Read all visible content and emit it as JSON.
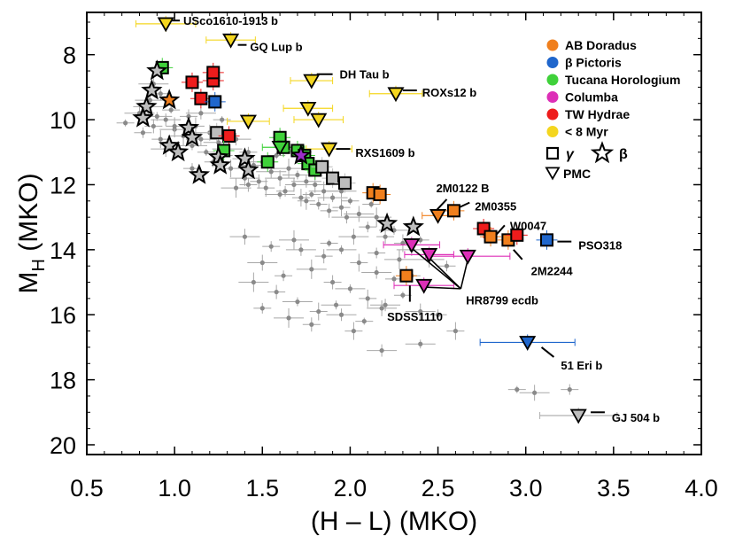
{
  "chart_data": {
    "type": "scatter",
    "xlabel": "(H – L) (MKO)",
    "ylabel_main": "M",
    "ylabel_sub": "H",
    "ylabel_tail": " (MKO)",
    "xlim": [
      0.5,
      4.0
    ],
    "ylim": [
      20.3,
      6.7
    ],
    "y_inverted": true,
    "x_ticks": [
      "0.5",
      "1.0",
      "1.5",
      "2.0",
      "2.5",
      "3.0",
      "3.5",
      "4.0"
    ],
    "y_ticks": [
      "8",
      "10",
      "12",
      "14",
      "16",
      "18",
      "20"
    ],
    "colors": {
      "ab_doradus": "#f07f1d",
      "beta_pictoris": "#1f66cc",
      "tucana_horologium": "#3fd13a",
      "columba": "#dd2fb7",
      "tw_hydrae": "#ee1c1c",
      "lt8myr": "#f4d61f",
      "field": "#8a8a8a",
      "beta_gray": "#bdbdbd"
    },
    "legend": {
      "entries": [
        {
          "label": "AB Doradus",
          "color": "#f07f1d"
        },
        {
          "label": "β Pictoris",
          "color": "#1f66cc"
        },
        {
          "label": "Tucana Horologium",
          "color": "#3fd13a"
        },
        {
          "label": "Columba",
          "color": "#dd2fb7"
        },
        {
          "label": "TW Hydrae",
          "color": "#ee1c1c"
        },
        {
          "label": "< 8 Myr",
          "color": "#f4d61f"
        }
      ],
      "gamma_label": "γ",
      "beta_label": "β",
      "pmc_label": "PMC",
      "location": "top-right"
    },
    "series": [
      {
        "name": "field",
        "marker": "dot",
        "points": [
          [
            0.72,
            10.1
          ],
          [
            0.8,
            9.8
          ],
          [
            0.82,
            10.4
          ],
          [
            0.85,
            9.6
          ],
          [
            0.88,
            10.2
          ],
          [
            0.9,
            9.9
          ],
          [
            0.92,
            10.6
          ],
          [
            0.95,
            10.0
          ],
          [
            0.98,
            9.7
          ],
          [
            1.0,
            10.3
          ],
          [
            1.02,
            10.9
          ],
          [
            1.05,
            10.5
          ],
          [
            1.08,
            9.9
          ],
          [
            1.1,
            10.8
          ],
          [
            1.12,
            10.2
          ],
          [
            1.15,
            10.6
          ],
          [
            1.18,
            11.0
          ],
          [
            1.2,
            10.4
          ],
          [
            1.22,
            11.3
          ],
          [
            1.25,
            10.7
          ],
          [
            1.28,
            11.1
          ],
          [
            1.3,
            10.9
          ],
          [
            1.32,
            11.5
          ],
          [
            1.35,
            10.6
          ],
          [
            1.38,
            11.2
          ],
          [
            1.4,
            11.8
          ],
          [
            1.42,
            11.0
          ],
          [
            1.45,
            11.4
          ],
          [
            1.48,
            11.9
          ],
          [
            1.5,
            11.3
          ],
          [
            1.52,
            12.1
          ],
          [
            1.55,
            11.6
          ],
          [
            1.58,
            11.1
          ],
          [
            1.6,
            11.8
          ],
          [
            1.63,
            12.2
          ],
          [
            1.65,
            11.5
          ],
          [
            1.68,
            12.0
          ],
          [
            1.7,
            11.7
          ],
          [
            1.72,
            12.4
          ],
          [
            1.75,
            11.9
          ],
          [
            1.78,
            12.3
          ],
          [
            1.8,
            12.0
          ],
          [
            1.82,
            12.6
          ],
          [
            1.85,
            12.2
          ],
          [
            1.88,
            12.8
          ],
          [
            1.9,
            12.4
          ],
          [
            1.95,
            12.7
          ],
          [
            1.98,
            13.0
          ],
          [
            2.0,
            12.5
          ],
          [
            2.05,
            12.9
          ],
          [
            2.1,
            13.3
          ],
          [
            2.15,
            13.0
          ],
          [
            2.2,
            13.6
          ],
          [
            2.25,
            13.4
          ],
          [
            2.3,
            13.8
          ],
          [
            2.35,
            14.0
          ],
          [
            2.4,
            13.7
          ],
          [
            2.45,
            14.3
          ],
          [
            2.55,
            14.5
          ],
          [
            0.88,
            8.9
          ],
          [
            0.92,
            9.2
          ],
          [
            0.86,
            9.4
          ],
          [
            1.0,
            10.2
          ],
          [
            1.15,
            9.8
          ],
          [
            1.27,
            10.0
          ],
          [
            0.95,
            10.9
          ],
          [
            1.1,
            11.5
          ],
          [
            1.35,
            12.1
          ],
          [
            1.42,
            12.0
          ],
          [
            1.6,
            12.3
          ],
          [
            1.75,
            12.5
          ],
          [
            1.95,
            12.2
          ],
          [
            2.12,
            12.6
          ],
          [
            1.4,
            13.6
          ],
          [
            1.55,
            13.9
          ],
          [
            1.68,
            13.7
          ],
          [
            1.85,
            14.2
          ],
          [
            1.95,
            14.0
          ],
          [
            2.05,
            14.4
          ],
          [
            2.15,
            14.7
          ],
          [
            2.25,
            14.9
          ],
          [
            1.5,
            14.4
          ],
          [
            1.62,
            14.8
          ],
          [
            1.78,
            14.6
          ],
          [
            1.9,
            15.0
          ],
          [
            2.0,
            15.2
          ],
          [
            2.1,
            15.5
          ],
          [
            2.2,
            15.7
          ],
          [
            2.3,
            15.4
          ],
          [
            2.4,
            15.9
          ],
          [
            2.5,
            16.0
          ],
          [
            1.45,
            15.0
          ],
          [
            1.58,
            15.3
          ],
          [
            1.7,
            15.6
          ],
          [
            1.82,
            15.9
          ],
          [
            1.95,
            16.0
          ],
          [
            2.08,
            16.2
          ],
          [
            2.18,
            15.8
          ],
          [
            1.5,
            15.8
          ],
          [
            1.65,
            16.1
          ],
          [
            1.78,
            16.3
          ],
          [
            1.92,
            15.7
          ],
          [
            2.02,
            16.5
          ],
          [
            1.72,
            14.0
          ],
          [
            1.88,
            13.8
          ],
          [
            2.02,
            13.6
          ],
          [
            2.15,
            14.1
          ],
          [
            2.28,
            14.3
          ],
          [
            2.35,
            14.8
          ],
          [
            2.4,
            16.9
          ],
          [
            2.6,
            16.5
          ],
          [
            2.18,
            17.1
          ],
          [
            2.95,
            18.3
          ],
          [
            3.05,
            18.4
          ],
          [
            3.25,
            18.3
          ]
        ]
      },
      {
        "name": "pmc",
        "marker": "triangle-down",
        "points": [
          {
            "x": 0.95,
            "y": 7.05,
            "color": "#f4d61f",
            "xerr": 0.17
          },
          {
            "x": 1.32,
            "y": 7.55,
            "color": "#f4d61f",
            "xerr": 0.14
          },
          {
            "x": 1.78,
            "y": 8.8,
            "color": "#f4d61f",
            "xerr": 0.12
          },
          {
            "x": 2.26,
            "y": 9.2,
            "color": "#f4d61f",
            "xerr": 0.15
          },
          {
            "x": 1.76,
            "y": 9.65,
            "color": "#f4d61f",
            "xerr": 0.14
          },
          {
            "x": 1.82,
            "y": 10.0,
            "color": "#f4d61f",
            "xerr": 0.14
          },
          {
            "x": 1.42,
            "y": 10.05,
            "color": "#f4d61f",
            "xerr": 0.12
          },
          {
            "x": 1.88,
            "y": 10.9,
            "color": "#f4d61f",
            "xerr": 0.13
          },
          {
            "x": 2.35,
            "y": 13.85,
            "color": "#dd2fb7",
            "xerr": 0.16
          },
          {
            "x": 2.45,
            "y": 14.15,
            "color": "#dd2fb7",
            "xerr": 0.14
          },
          {
            "x": 2.67,
            "y": 14.2,
            "color": "#dd2fb7",
            "xerr": 0.24
          },
          {
            "x": 2.42,
            "y": 15.1,
            "color": "#dd2fb7",
            "xerr": 0.17
          },
          {
            "x": 3.01,
            "y": 16.85,
            "color": "#1f66cc",
            "xerr": 0.27
          },
          {
            "x": 3.3,
            "y": 19.1,
            "color": "#bdbdbd",
            "xerr": 0.22
          },
          {
            "x": 2.5,
            "y": 12.95,
            "color": "#f07f1d",
            "xerr": 0.09
          },
          {
            "x": 1.6,
            "y": 10.85,
            "color": "#3fd13a",
            "xerr": 0.1
          }
        ]
      },
      {
        "name": "gamma",
        "marker": "square",
        "points": [
          {
            "x": 0.93,
            "y": 8.4,
            "color": "#3fd13a"
          },
          {
            "x": 1.1,
            "y": 8.85,
            "color": "#ee1c1c"
          },
          {
            "x": 1.22,
            "y": 8.8,
            "color": "#ee1c1c"
          },
          {
            "x": 1.22,
            "y": 8.55,
            "color": "#ee1c1c"
          },
          {
            "x": 1.15,
            "y": 9.35,
            "color": "#ee1c1c"
          },
          {
            "x": 1.23,
            "y": 9.45,
            "color": "#1f66cc"
          },
          {
            "x": 1.24,
            "y": 10.4,
            "color": "#bdbdbd"
          },
          {
            "x": 1.31,
            "y": 10.5,
            "color": "#ee1c1c"
          },
          {
            "x": 1.28,
            "y": 10.95,
            "color": "#3fd13a"
          },
          {
            "x": 1.6,
            "y": 10.55,
            "color": "#3fd13a"
          },
          {
            "x": 1.62,
            "y": 10.85,
            "color": "#3fd13a"
          },
          {
            "x": 1.7,
            "y": 10.95,
            "color": "#3fd13a"
          },
          {
            "x": 1.74,
            "y": 11.1,
            "color": "#3fd13a"
          },
          {
            "x": 1.76,
            "y": 11.35,
            "color": "#3fd13a"
          },
          {
            "x": 1.53,
            "y": 11.3,
            "color": "#3fd13a"
          },
          {
            "x": 1.8,
            "y": 11.55,
            "color": "#3fd13a"
          },
          {
            "x": 1.84,
            "y": 11.45,
            "color": "#bdbdbd"
          },
          {
            "x": 1.9,
            "y": 11.8,
            "color": "#bdbdbd"
          },
          {
            "x": 1.97,
            "y": 11.95,
            "color": "#bdbdbd"
          },
          {
            "x": 2.13,
            "y": 12.25,
            "color": "#f07f1d"
          },
          {
            "x": 2.17,
            "y": 12.3,
            "color": "#f07f1d"
          },
          {
            "x": 2.59,
            "y": 12.8,
            "color": "#f07f1d"
          },
          {
            "x": 2.76,
            "y": 13.35,
            "color": "#ee1c1c"
          },
          {
            "x": 2.8,
            "y": 13.6,
            "color": "#f07f1d"
          },
          {
            "x": 2.9,
            "y": 13.7,
            "color": "#f07f1d"
          },
          {
            "x": 2.95,
            "y": 13.55,
            "color": "#ee1c1c"
          },
          {
            "x": 3.12,
            "y": 13.7,
            "color": "#1f66cc"
          },
          {
            "x": 2.32,
            "y": 14.8,
            "color": "#f07f1d"
          }
        ]
      },
      {
        "name": "beta",
        "marker": "star",
        "points": [
          {
            "x": 0.9,
            "y": 8.5,
            "color": "#bdbdbd"
          },
          {
            "x": 0.87,
            "y": 9.1,
            "color": "#bdbdbd"
          },
          {
            "x": 0.97,
            "y": 9.4,
            "color": "#f07f1d"
          },
          {
            "x": 0.84,
            "y": 9.6,
            "color": "#bdbdbd"
          },
          {
            "x": 0.82,
            "y": 9.95,
            "color": "#bdbdbd"
          },
          {
            "x": 1.08,
            "y": 10.25,
            "color": "#bdbdbd"
          },
          {
            "x": 1.1,
            "y": 10.55,
            "color": "#bdbdbd"
          },
          {
            "x": 0.97,
            "y": 10.8,
            "color": "#bdbdbd"
          },
          {
            "x": 1.02,
            "y": 11.0,
            "color": "#bdbdbd"
          },
          {
            "x": 1.25,
            "y": 11.15,
            "color": "#bdbdbd"
          },
          {
            "x": 1.4,
            "y": 11.2,
            "color": "#bdbdbd"
          },
          {
            "x": 1.26,
            "y": 11.4,
            "color": "#bdbdbd"
          },
          {
            "x": 1.42,
            "y": 11.55,
            "color": "#bdbdbd"
          },
          {
            "x": 1.14,
            "y": 11.7,
            "color": "#bdbdbd"
          },
          {
            "x": 1.72,
            "y": 11.1,
            "color": "#9b2fc8"
          },
          {
            "x": 2.21,
            "y": 13.2,
            "color": "#bdbdbd"
          },
          {
            "x": 2.36,
            "y": 13.3,
            "color": "#bdbdbd"
          }
        ]
      }
    ],
    "annotations": [
      {
        "text": "USco1610-1913 b",
        "x": 1.05,
        "y": 6.95,
        "lx1": 0.98,
        "ly1": 6.95,
        "lx2": 1.03,
        "ly2": 6.95
      },
      {
        "text": "GQ Lup b",
        "x": 1.43,
        "y": 7.75,
        "lx1": 1.36,
        "ly1": 7.7,
        "lx2": 1.41,
        "ly2": 7.7
      },
      {
        "text": "DH Tau b",
        "x": 1.94,
        "y": 8.6,
        "lx1": 1.81,
        "ly1": 8.6,
        "lx2": 1.9,
        "ly2": 8.6
      },
      {
        "text": "ROXs12 b",
        "x": 2.41,
        "y": 9.15,
        "lx1": 2.3,
        "ly1": 9.1,
        "lx2": 2.38,
        "ly2": 9.1
      },
      {
        "text": "RXS1609 b",
        "x": 2.03,
        "y": 11.0,
        "lx1": 1.92,
        "ly1": 10.9,
        "lx2": 2.0,
        "ly2": 10.9
      },
      {
        "text": "2M0122 B",
        "x": 2.49,
        "y": 12.1,
        "lx1": 2.48,
        "ly1": 12.85,
        "lx2": 2.55,
        "ly2": 12.45
      },
      {
        "text": "2M0355",
        "x": 2.71,
        "y": 12.65,
        "lx1": 2.6,
        "ly1": 12.75,
        "lx2": 2.68,
        "ly2": 12.55
      },
      {
        "text": "W0047",
        "x": 2.91,
        "y": 13.25,
        "lx1": 2.83,
        "ly1": 13.55,
        "lx2": 2.88,
        "ly2": 13.25
      },
      {
        "text": "PSO318",
        "x": 3.3,
        "y": 13.85,
        "lx1": 3.18,
        "ly1": 13.75,
        "lx2": 3.26,
        "ly2": 13.75
      },
      {
        "text": "2M2244",
        "x": 3.03,
        "y": 14.65,
        "lx1": 2.93,
        "ly1": 14.0,
        "lx2": 2.98,
        "ly2": 14.3
      },
      {
        "text": "HR8799 ecdb",
        "x": 2.66,
        "y": 15.55,
        "lx1": 2.63,
        "ly1": 15.2,
        "lx2": 2.63,
        "ly2": 15.2
      },
      {
        "text": "SDSS1110",
        "x": 2.21,
        "y": 16.05,
        "lx1": 2.34,
        "ly1": 15.1,
        "lx2": 2.34,
        "ly2": 15.6
      },
      {
        "text": "51 Eri b",
        "x": 3.2,
        "y": 17.55,
        "lx1": 3.09,
        "ly1": 17.0,
        "lx2": 3.16,
        "ly2": 17.3
      },
      {
        "text": "GJ 504 b",
        "x": 3.49,
        "y": 19.15,
        "lx1": 3.37,
        "ly1": 19.0,
        "lx2": 3.45,
        "ly2": 19.0
      }
    ]
  }
}
